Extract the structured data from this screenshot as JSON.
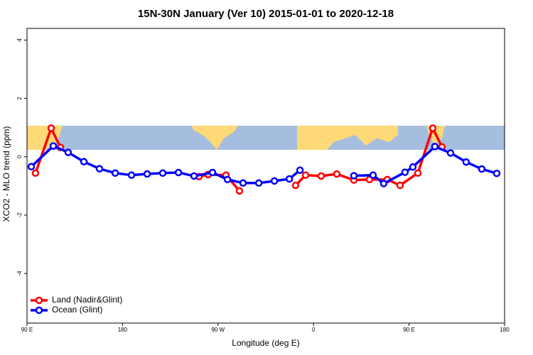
{
  "chart_data": {
    "type": "line",
    "title": "15N-30N January (Ver 10)   2015-01-01 to 2020-12-18",
    "x_label": "Longitude (deg E)",
    "y_label": "XCO2 - MLO trend (ppm)",
    "xlim": [
      90,
      540
    ],
    "xticks": [
      {
        "value": 90,
        "label": "90 E"
      },
      180,
      {
        "value": 270,
        "label": "90 W"
      },
      {
        "value": 360,
        "label": "0"
      },
      {
        "value": 450,
        "label": "90 E"
      },
      {
        "value": 540,
        "label": "180"
      }
    ],
    "ylim": [
      -5.7,
      4.4
    ],
    "yticks": [
      -4,
      -2,
      0,
      2,
      4
    ],
    "legend": "bottom-left",
    "series": [
      {
        "name": "Land (Nadir&Glint)",
        "color": "#ff0000",
        "x": [
          98.0,
          112.8,
          121.5,
          null,
          252.0,
          260.7,
          277.5,
          290.2,
          null,
          343.1,
          352.5,
          367.2,
          381.9,
          398.0,
          412.7,
          429.5,
          441.5,
          458.3,
          472.3,
          481.0
        ],
        "values": [
          -0.56,
          0.98,
          0.32,
          null,
          -0.68,
          -0.61,
          -0.63,
          -1.17,
          null,
          -0.98,
          -0.63,
          -0.66,
          -0.59,
          -0.8,
          -0.78,
          -0.78,
          -0.98,
          -0.56,
          0.98,
          0.34
        ]
      },
      {
        "name": "Ocean (Glint)",
        "color": "#0000ff",
        "x": [
          94.0,
          114.8,
          128.8,
          143.6,
          158.3,
          173.1,
          188.5,
          203.2,
          217.9,
          232.7,
          247.4,
          264.8,
          278.9,
          293.6,
          308.4,
          323.1,
          337.2,
          347.2,
          null,
          398.0,
          416.1,
          426.1,
          446.2,
          453.6,
          474.3,
          489.1,
          503.8,
          518.5,
          532.6
        ],
        "values": [
          -0.34,
          0.37,
          0.15,
          -0.17,
          -0.41,
          -0.56,
          -0.63,
          -0.59,
          -0.56,
          -0.54,
          -0.66,
          -0.54,
          -0.78,
          -0.9,
          -0.9,
          -0.83,
          -0.76,
          -0.46,
          null,
          -0.65,
          -0.63,
          -0.92,
          -0.53,
          -0.35,
          0.35,
          0.13,
          -0.18,
          -0.42,
          -0.57
        ]
      }
    ]
  }
}
